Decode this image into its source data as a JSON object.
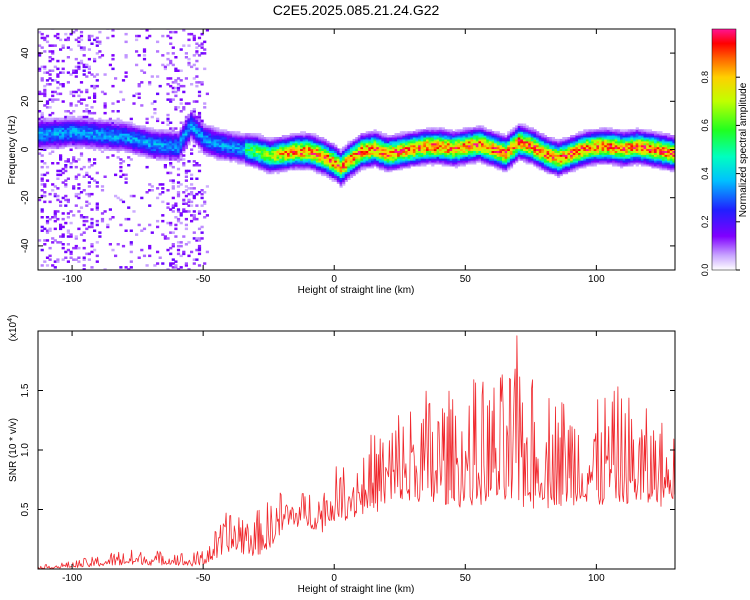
{
  "figure_title": "C2E5.2025.085.21.24.G22",
  "colors": {
    "snr_line": "#f0282d",
    "axis": "#000000"
  },
  "chart_data": [
    {
      "type": "heatmap",
      "title": "C2E5.2025.085.21.24.G22",
      "xlabel": "Height of straight line (km)",
      "ylabel": "Frequency (Hz)",
      "xlim": [
        -113,
        130
      ],
      "ylim": [
        -50,
        50
      ],
      "x_ticks": [
        -100,
        -50,
        0,
        50,
        100
      ],
      "y_ticks": [
        -40,
        -20,
        0,
        20,
        40
      ],
      "colormap": "rainbow (white-purple-blue-cyan-green-yellow-red-magenta)",
      "colorbar": {
        "label": "Normalized spectral amplitude",
        "range": [
          0,
          1
        ],
        "ticks": [
          0.0,
          0.2,
          0.4,
          0.6,
          0.8
        ]
      },
      "ridge_frequency_track": {
        "x": [
          -113,
          -100,
          -90,
          -80,
          -70,
          -60,
          -55,
          -50,
          -45,
          -40,
          -35,
          -30,
          -25,
          -20,
          -15,
          -10,
          -5,
          0,
          2,
          5,
          10,
          15,
          20,
          25,
          30,
          35,
          40,
          45,
          50,
          55,
          60,
          65,
          70,
          75,
          80,
          85,
          90,
          95,
          100,
          105,
          110,
          115,
          120,
          125,
          130
        ],
        "y": [
          6,
          7,
          6,
          5,
          2,
          1,
          10,
          4,
          2,
          1,
          0,
          -1,
          -3,
          -2,
          -1,
          -1,
          -3,
          -6,
          -8,
          -5,
          -1,
          0,
          -2,
          -1,
          0,
          1,
          1,
          0,
          1,
          2,
          0,
          -2,
          3,
          1,
          -2,
          -4,
          -2,
          0,
          1,
          1,
          0,
          1,
          0,
          -1,
          -2
        ]
      }
    },
    {
      "type": "line",
      "xlabel": "Height of straight line (km)",
      "ylabel": "SNR (10 * v/v)",
      "y_multiplier": "(x10^4)",
      "xlim": [
        -113,
        130
      ],
      "ylim": [
        0,
        2.0
      ],
      "x_ticks": [
        -100,
        -50,
        0,
        50,
        100
      ],
      "y_ticks": [
        0.5,
        1.0,
        1.5
      ],
      "series": [
        {
          "envelope_x": [
            -113,
            -100,
            -90,
            -80,
            -70,
            -60,
            -55,
            -50,
            -45,
            -40,
            -35,
            -30,
            -25,
            -20,
            -15,
            -10,
            -5,
            0,
            5,
            10,
            15,
            20,
            25,
            30,
            35,
            40,
            45,
            50,
            55,
            60,
            65,
            70,
            75,
            80,
            85,
            90,
            95,
            100,
            105,
            110,
            115,
            120,
            125,
            130
          ],
          "envelope_low": [
            0.0,
            0.01,
            0.02,
            0.03,
            0.03,
            0.03,
            0.02,
            0.03,
            0.08,
            0.12,
            0.1,
            0.1,
            0.15,
            0.3,
            0.35,
            0.35,
            0.3,
            0.4,
            0.4,
            0.45,
            0.45,
            0.5,
            0.5,
            0.5,
            0.5,
            0.5,
            0.5,
            0.5,
            0.5,
            0.5,
            0.5,
            0.5,
            0.5,
            0.5,
            0.5,
            0.5,
            0.5,
            0.5,
            0.5,
            0.5,
            0.5,
            0.5,
            0.5,
            0.55
          ],
          "envelope_high": [
            0.03,
            0.07,
            0.12,
            0.18,
            0.16,
            0.17,
            0.12,
            0.2,
            0.35,
            0.55,
            0.6,
            0.5,
            0.6,
            0.7,
            0.65,
            0.7,
            0.75,
            0.85,
            1.0,
            1.1,
            1.2,
            1.3,
            1.45,
            1.55,
            1.6,
            1.65,
            1.55,
            1.6,
            1.65,
            1.7,
            1.7,
            2.0,
            1.7,
            1.6,
            1.6,
            1.55,
            1.6,
            1.5,
            1.6,
            1.55,
            1.5,
            1.4,
            1.3,
            1.2
          ]
        }
      ]
    }
  ]
}
